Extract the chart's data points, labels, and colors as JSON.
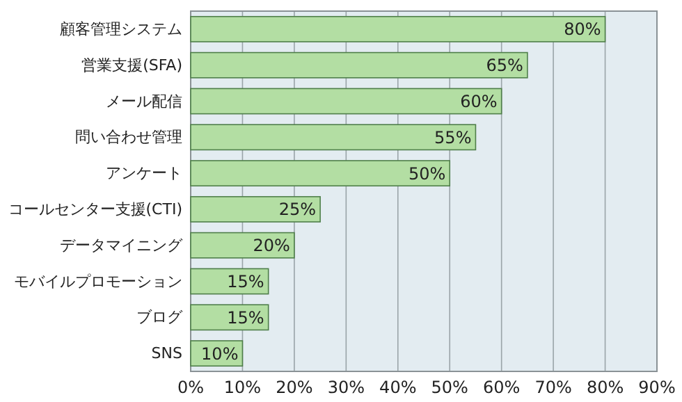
{
  "chart_data": {
    "type": "bar",
    "orientation": "horizontal",
    "categories": [
      "顧客管理システム",
      "営業支援(SFA)",
      "メール配信",
      "問い合わせ管理",
      "アンケート",
      "コールセンター支援(CTI)",
      "データマイニング",
      "モバイルプロモーション",
      "ブログ",
      "SNS"
    ],
    "values": [
      80,
      65,
      60,
      55,
      50,
      25,
      20,
      15,
      15,
      10
    ],
    "value_labels": [
      "80%",
      "65%",
      "60%",
      "55%",
      "50%",
      "25%",
      "20%",
      "15%",
      "15%",
      "10%"
    ],
    "color": "#b3dea3",
    "xlim": [
      0,
      90
    ],
    "xticks": [
      {
        "value": 0,
        "label": "0%"
      },
      {
        "value": 10,
        "label": "10%"
      },
      {
        "value": 20,
        "label": "20%"
      },
      {
        "value": 30,
        "label": "30%"
      },
      {
        "value": 40,
        "label": "40%"
      },
      {
        "value": 50,
        "label": "50%"
      },
      {
        "value": 60,
        "label": "60%"
      },
      {
        "value": 70,
        "label": "70%"
      },
      {
        "value": 80,
        "label": "80%"
      },
      {
        "value": 90,
        "label": "90%"
      }
    ],
    "grid": "x"
  }
}
